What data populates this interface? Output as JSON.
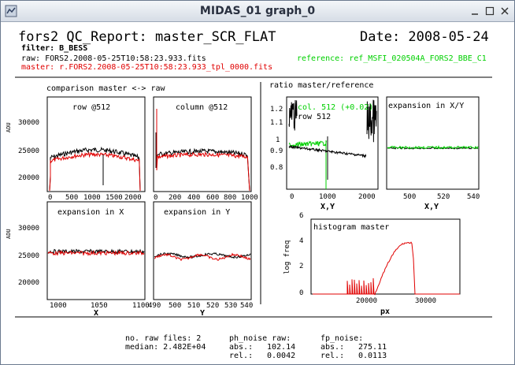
{
  "window": {
    "title": "MIDAS_01 graph_0",
    "icons": [
      "app-icon",
      "minimize-icon",
      "maximize-icon",
      "close-icon"
    ]
  },
  "report": {
    "heading": "fors2 QC_Report: master_SCR_FLAT",
    "date": "Date: 2008-05-24",
    "filter": "filter: B_BESS",
    "raw_file": "raw: FORS2.2008-05-25T10:58:23.933.fits",
    "master_file": "master: r.FORS2.2008-05-25T10:58:23.933_tpl_0000.fits",
    "reference_file": "reference: ref_MSFI_020504A_FORS2_BBE_C1"
  },
  "colors": {
    "raw": "#000000",
    "master": "#e00000",
    "reference": "#00d000",
    "accent_text_red": "#e00000",
    "accent_text_green": "#00d000"
  },
  "sections": {
    "comparison": "comparison master <-> raw",
    "ratio": "ratio master/reference"
  },
  "panels": {
    "row": {
      "title": "row @512",
      "xticks": [
        "0",
        "500",
        "1000",
        "1500",
        "2000"
      ],
      "yticks": [
        "20000",
        "25000",
        "30000"
      ],
      "ylabel": "ADU"
    },
    "column": {
      "title": "column @512",
      "xticks": [
        "0",
        "200",
        "400",
        "600",
        "800",
        "1000"
      ]
    },
    "expansion_x": {
      "title": "expansion in X",
      "xticks": [
        "1000",
        "1050",
        "1100"
      ],
      "yticks": [
        "20000",
        "25000",
        "30000"
      ],
      "ylabel": "ADU",
      "xlabel": "X"
    },
    "expansion_y": {
      "title": "expansion in Y",
      "xticks": [
        "490",
        "500",
        "510",
        "520",
        "530",
        "540"
      ],
      "xlabel": "Y"
    },
    "ratio": {
      "legend_col": "col. 512 (+0.02)",
      "legend_row": "row 512",
      "yticks": [
        "0.8",
        "0.9",
        "1",
        "1.1",
        "1.2"
      ],
      "xticks": [
        "0",
        "1000",
        "2000"
      ],
      "xlabel": "X,Y"
    },
    "expansion_xy": {
      "title": "expansion in X/Y",
      "xticks": [
        "500",
        "520",
        "540"
      ],
      "xlabel": "X,Y"
    },
    "histogram": {
      "title": "histogram master",
      "ylabel": "log freq",
      "xlabel": "px",
      "yticks": [
        "0",
        "2",
        "4",
        "6"
      ],
      "xticks": [
        "20000",
        "30000"
      ]
    }
  },
  "stats": {
    "raw_files": "no. raw files: 2",
    "median": "median: 2.482E+04",
    "ph_noise_title": "ph_noise raw:",
    "ph_abs_label": "abs.:",
    "ph_abs": "102.14",
    "ph_rel_label": "rel.:",
    "ph_rel": "0.0042",
    "fp_noise_title": "fp_noise:",
    "fp_abs_label": "abs.:",
    "fp_abs": "275.11",
    "fp_rel_label": "rel.:",
    "fp_rel": "0.0113"
  }
}
